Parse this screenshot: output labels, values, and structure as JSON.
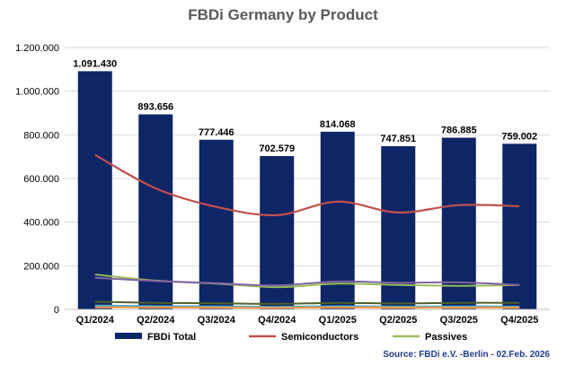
{
  "chart_data": {
    "type": "bar",
    "title": "FBDi Germany by Product",
    "categories": [
      "Q1/2024",
      "Q2/2024",
      "Q3/2024",
      "Q4/2024",
      "Q1/2025",
      "Q2/2025",
      "Q3/2025",
      "Q4/2025"
    ],
    "ylim": [
      0,
      1200000
    ],
    "yticks": [
      0,
      200000,
      400000,
      600000,
      800000,
      1000000,
      1200000
    ],
    "ytick_labels": [
      "0",
      "200.000",
      "400.000",
      "600.000",
      "800.000",
      "1.000.000",
      "1.200.000"
    ],
    "gridlines": true,
    "series": [
      {
        "name": "FBDi Total",
        "kind": "bar",
        "color": "#0e2566",
        "values": [
          1091430,
          893656,
          777446,
          702579,
          814068,
          747851,
          786885,
          759002
        ],
        "labels": [
          "1.091.430",
          "893.656",
          "777.446",
          "702.579",
          "814.068",
          "747.851",
          "786.885",
          "759.002"
        ]
      },
      {
        "name": "Semiconductors",
        "kind": "line",
        "color": "#c0504d",
        "values": [
          708000,
          555000,
          470000,
          432000,
          494000,
          444000,
          478000,
          473000
        ]
      },
      {
        "name": "Passives",
        "kind": "line",
        "color": "#9bbb59",
        "values": [
          160000,
          132000,
          118000,
          102000,
          118000,
          112000,
          108000,
          112000
        ]
      },
      {
        "name": "",
        "kind": "line",
        "color": "#8064a2",
        "values": [
          145000,
          130000,
          120000,
          110000,
          128000,
          122000,
          124000,
          112000
        ]
      },
      {
        "name": "",
        "kind": "line",
        "color": "#4f6228",
        "values": [
          35000,
          30000,
          28000,
          25000,
          30000,
          27000,
          30000,
          30000
        ]
      },
      {
        "name": "",
        "kind": "line",
        "color": "#4bacc6",
        "values": [
          18000,
          15000,
          14000,
          12000,
          15000,
          13000,
          14000,
          13000
        ]
      },
      {
        "name": "",
        "kind": "line",
        "color": "#f79646",
        "values": [
          10000,
          9000,
          8000,
          7000,
          9000,
          8000,
          8000,
          8000
        ]
      }
    ],
    "legend_position": "bottom",
    "source": "Source: FBDi e.V. -Berlin - 02.Feb. 2026"
  }
}
